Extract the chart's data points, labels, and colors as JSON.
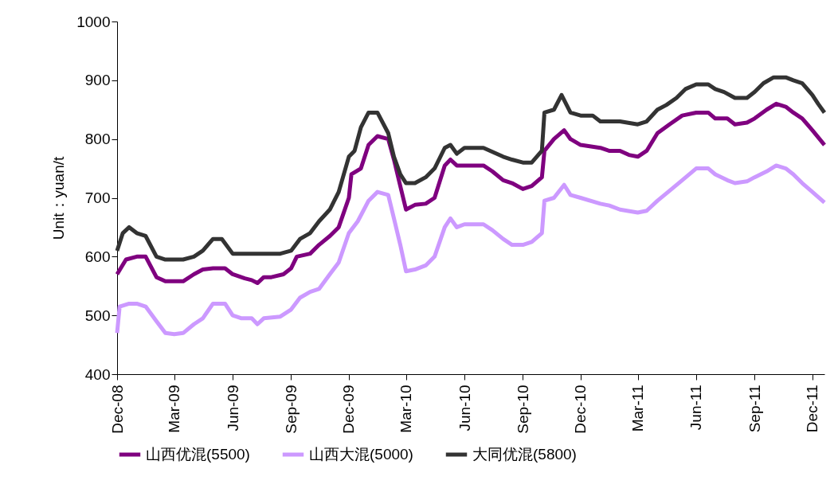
{
  "chart_data": {
    "type": "line",
    "ylabel": "Unit：yuan/t",
    "legend": "bottom",
    "line_style": "solid",
    "marker": "none",
    "xlim": [
      "2008-12-01",
      "2011-12-20"
    ],
    "ylim": [
      400,
      1000
    ],
    "yticks": [
      400,
      500,
      600,
      700,
      800,
      900,
      1000
    ],
    "xticks": [
      {
        "value": "2008-12-01",
        "label": "Dec-08"
      },
      {
        "value": "2009-03-01",
        "label": "Mar-09"
      },
      {
        "value": "2009-06-01",
        "label": "Jun-09"
      },
      {
        "value": "2009-09-01",
        "label": "Sep-09"
      },
      {
        "value": "2009-12-01",
        "label": "Dec-09"
      },
      {
        "value": "2010-03-01",
        "label": "Mar-10"
      },
      {
        "value": "2010-06-01",
        "label": "Jun-10"
      },
      {
        "value": "2010-09-01",
        "label": "Sep-10"
      },
      {
        "value": "2010-12-01",
        "label": "Dec-10"
      },
      {
        "value": "2011-03-01",
        "label": "Mar-11"
      },
      {
        "value": "2011-06-01",
        "label": "Jun-11"
      },
      {
        "value": "2011-09-01",
        "label": "Sep-11"
      },
      {
        "value": "2011-12-01",
        "label": "Dec-11"
      }
    ],
    "series": [
      {
        "name": "山西优混(5500)",
        "color": "#7f007f",
        "x": [
          "2008-12-01",
          "2008-12-15",
          "2009-01-01",
          "2009-01-15",
          "2009-02-01",
          "2009-02-15",
          "2009-03-01",
          "2009-03-15",
          "2009-04-01",
          "2009-04-15",
          "2009-05-01",
          "2009-05-20",
          "2009-06-01",
          "2009-06-20",
          "2009-07-01",
          "2009-07-10",
          "2009-07-20",
          "2009-08-01",
          "2009-08-20",
          "2009-09-01",
          "2009-09-10",
          "2009-10-01",
          "2009-10-15",
          "2009-11-01",
          "2009-11-15",
          "2009-12-01",
          "2009-12-05",
          "2009-12-20",
          "2010-01-01",
          "2010-01-15",
          "2010-02-01",
          "2010-02-10",
          "2010-02-20",
          "2010-03-01",
          "2010-03-15",
          "2010-04-01",
          "2010-04-15",
          "2010-05-01",
          "2010-05-10",
          "2010-05-20",
          "2010-06-01",
          "2010-07-01",
          "2010-07-15",
          "2010-08-01",
          "2010-08-15",
          "2010-09-01",
          "2010-09-15",
          "2010-10-01",
          "2010-10-05",
          "2010-10-20",
          "2010-11-05",
          "2010-11-15",
          "2010-12-01",
          "2011-01-01",
          "2011-01-15",
          "2011-02-01",
          "2011-02-15",
          "2011-03-01",
          "2011-03-15",
          "2011-04-01",
          "2011-04-20",
          "2011-05-10",
          "2011-06-01",
          "2011-06-20",
          "2011-07-01",
          "2011-07-20",
          "2011-08-01",
          "2011-08-20",
          "2011-09-01",
          "2011-09-20",
          "2011-10-05",
          "2011-10-20",
          "2011-11-01",
          "2011-11-15",
          "2011-12-01",
          "2011-12-20"
        ],
        "values": [
          570,
          595,
          600,
          600,
          565,
          558,
          558,
          558,
          570,
          578,
          580,
          580,
          570,
          563,
          560,
          555,
          565,
          565,
          570,
          580,
          600,
          605,
          620,
          635,
          650,
          700,
          740,
          750,
          790,
          805,
          800,
          765,
          720,
          680,
          688,
          690,
          700,
          755,
          765,
          755,
          755,
          755,
          745,
          730,
          725,
          715,
          720,
          735,
          780,
          800,
          815,
          800,
          790,
          785,
          780,
          780,
          773,
          770,
          780,
          810,
          825,
          840,
          845,
          845,
          835,
          835,
          825,
          828,
          835,
          850,
          860,
          855,
          845,
          835,
          815,
          790
        ]
      },
      {
        "name": "山西大混(5000)",
        "color": "#cc99ff",
        "x": [
          "2008-12-01",
          "2008-12-05",
          "2008-12-20",
          "2009-01-01",
          "2009-01-15",
          "2009-02-01",
          "2009-02-15",
          "2009-03-01",
          "2009-03-15",
          "2009-04-01",
          "2009-04-15",
          "2009-05-01",
          "2009-05-20",
          "2009-06-01",
          "2009-06-15",
          "2009-07-01",
          "2009-07-10",
          "2009-07-20",
          "2009-08-15",
          "2009-09-01",
          "2009-09-15",
          "2009-10-01",
          "2009-10-15",
          "2009-11-01",
          "2009-11-15",
          "2009-12-01",
          "2009-12-15",
          "2010-01-01",
          "2010-01-15",
          "2010-02-01",
          "2010-02-10",
          "2010-02-20",
          "2010-03-01",
          "2010-03-15",
          "2010-04-01",
          "2010-04-15",
          "2010-05-01",
          "2010-05-10",
          "2010-05-20",
          "2010-06-01",
          "2010-07-01",
          "2010-07-15",
          "2010-08-01",
          "2010-08-15",
          "2010-09-01",
          "2010-09-15",
          "2010-10-01",
          "2010-10-05",
          "2010-10-20",
          "2010-11-05",
          "2010-11-15",
          "2010-12-01",
          "2011-01-01",
          "2011-01-15",
          "2011-02-01",
          "2011-03-01",
          "2011-03-15",
          "2011-04-01",
          "2011-04-20",
          "2011-05-10",
          "2011-06-01",
          "2011-06-20",
          "2011-07-01",
          "2011-07-20",
          "2011-08-01",
          "2011-08-20",
          "2011-09-01",
          "2011-09-20",
          "2011-10-05",
          "2011-10-20",
          "2011-11-01",
          "2011-11-15",
          "2011-12-01",
          "2011-12-20"
        ],
        "values": [
          470,
          515,
          520,
          520,
          515,
          490,
          470,
          468,
          470,
          485,
          495,
          520,
          520,
          500,
          495,
          495,
          485,
          495,
          498,
          510,
          530,
          540,
          545,
          570,
          590,
          640,
          660,
          695,
          710,
          705,
          665,
          620,
          575,
          578,
          585,
          600,
          650,
          665,
          650,
          655,
          655,
          645,
          630,
          620,
          620,
          625,
          640,
          695,
          700,
          722,
          705,
          700,
          690,
          687,
          680,
          675,
          678,
          695,
          712,
          730,
          750,
          750,
          740,
          730,
          725,
          728,
          735,
          745,
          755,
          750,
          740,
          725,
          710,
          692
        ]
      },
      {
        "name": "大同优混(5800)",
        "color": "#333333",
        "x": [
          "2008-12-01",
          "2008-12-10",
          "2008-12-20",
          "2009-01-01",
          "2009-01-15",
          "2009-02-01",
          "2009-02-15",
          "2009-03-01",
          "2009-03-15",
          "2009-04-01",
          "2009-04-15",
          "2009-05-01",
          "2009-05-15",
          "2009-06-01",
          "2009-06-15",
          "2009-07-15",
          "2009-08-15",
          "2009-09-01",
          "2009-09-15",
          "2009-10-01",
          "2009-10-15",
          "2009-11-01",
          "2009-11-15",
          "2009-12-01",
          "2009-12-10",
          "2009-12-20",
          "2010-01-01",
          "2010-01-15",
          "2010-02-01",
          "2010-02-10",
          "2010-02-20",
          "2010-03-01",
          "2010-03-15",
          "2010-04-01",
          "2010-04-15",
          "2010-05-01",
          "2010-05-10",
          "2010-05-20",
          "2010-06-01",
          "2010-07-01",
          "2010-08-01",
          "2010-08-15",
          "2010-09-01",
          "2010-09-15",
          "2010-10-01",
          "2010-10-05",
          "2010-10-20",
          "2010-11-01",
          "2010-11-15",
          "2010-12-01",
          "2010-12-20",
          "2011-01-01",
          "2011-02-01",
          "2011-03-01",
          "2011-03-15",
          "2011-04-01",
          "2011-04-15",
          "2011-05-01",
          "2011-05-15",
          "2011-06-01",
          "2011-06-20",
          "2011-07-01",
          "2011-07-15",
          "2011-08-01",
          "2011-08-20",
          "2011-09-01",
          "2011-09-15",
          "2011-10-01",
          "2011-10-20",
          "2011-11-01",
          "2011-11-15",
          "2011-12-01",
          "2011-12-10",
          "2011-12-20"
        ],
        "values": [
          610,
          640,
          650,
          640,
          635,
          600,
          595,
          595,
          595,
          600,
          610,
          630,
          630,
          605,
          605,
          605,
          605,
          610,
          630,
          640,
          660,
          680,
          710,
          770,
          780,
          820,
          845,
          845,
          810,
          770,
          740,
          725,
          725,
          735,
          750,
          785,
          790,
          775,
          785,
          785,
          770,
          765,
          760,
          760,
          780,
          845,
          850,
          875,
          845,
          840,
          840,
          830,
          830,
          825,
          830,
          850,
          858,
          870,
          885,
          893,
          893,
          885,
          880,
          870,
          870,
          880,
          895,
          905,
          905,
          900,
          895,
          875,
          860,
          845
        ]
      }
    ]
  }
}
